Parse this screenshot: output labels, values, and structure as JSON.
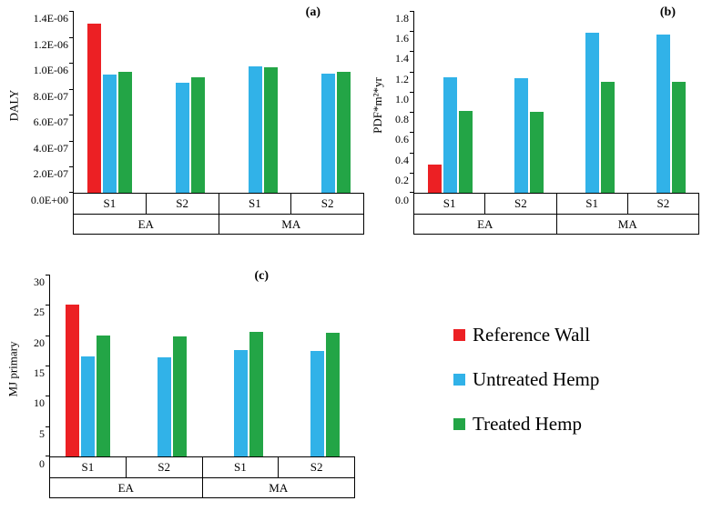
{
  "legend": {
    "items": [
      {
        "label": "Reference Wall",
        "color": "#ec2024"
      },
      {
        "label": "Untreated Hemp",
        "color": "#31b2e8"
      },
      {
        "label": "Treated Hemp",
        "color": "#23a546"
      }
    ]
  },
  "chart_data": [
    {
      "type": "bar",
      "panel": "(a)",
      "ylabel": "DALY",
      "ylim": [
        0,
        1.4e-06
      ],
      "yticks": [
        {
          "value": 0,
          "label": "0.0E+00"
        },
        {
          "value": 2e-07,
          "label": "2.0E-07"
        },
        {
          "value": 4e-07,
          "label": "4.0E-07"
        },
        {
          "value": 6e-07,
          "label": "6.0E-07"
        },
        {
          "value": 8e-07,
          "label": "8.0E-07"
        },
        {
          "value": 1e-06,
          "label": "1.0E-06"
        },
        {
          "value": 1.2e-06,
          "label": "1.2E-06"
        },
        {
          "value": 1.4e-06,
          "label": "1.4E-06"
        }
      ],
      "groups": [
        {
          "label": "EA",
          "subs": [
            "S1",
            "S2"
          ]
        },
        {
          "label": "MA",
          "subs": [
            "S1",
            "S2"
          ]
        }
      ],
      "series": [
        {
          "name": "Reference Wall",
          "color": "#ec2024",
          "values": [
            1.3e-06,
            null,
            null,
            null
          ]
        },
        {
          "name": "Untreated Hemp",
          "color": "#31b2e8",
          "values": [
            9.1e-07,
            8.5e-07,
            9.7e-07,
            9.15e-07
          ]
        },
        {
          "name": "Treated Hemp",
          "color": "#23a546",
          "values": [
            9.3e-07,
            8.9e-07,
            9.65e-07,
            9.3e-07
          ]
        }
      ]
    },
    {
      "type": "bar",
      "panel": "(b)",
      "ylabel": "PDF*m²*yr",
      "ylim": [
        0,
        1.8
      ],
      "yticks": [
        {
          "value": 0,
          "label": "0.0"
        },
        {
          "value": 0.2,
          "label": "0.2"
        },
        {
          "value": 0.4,
          "label": "0.4"
        },
        {
          "value": 0.6,
          "label": "0.6"
        },
        {
          "value": 0.8,
          "label": "0.8"
        },
        {
          "value": 1.0,
          "label": "1.0"
        },
        {
          "value": 1.2,
          "label": "1.2"
        },
        {
          "value": 1.4,
          "label": "1.4"
        },
        {
          "value": 1.6,
          "label": "1.6"
        },
        {
          "value": 1.8,
          "label": "1.8"
        }
      ],
      "groups": [
        {
          "label": "EA",
          "subs": [
            "S1",
            "S2"
          ]
        },
        {
          "label": "MA",
          "subs": [
            "S1",
            "S2"
          ]
        }
      ],
      "series": [
        {
          "name": "Reference Wall",
          "color": "#ec2024",
          "values": [
            0.28,
            null,
            null,
            null
          ]
        },
        {
          "name": "Untreated Hemp",
          "color": "#31b2e8",
          "values": [
            1.14,
            1.13,
            1.58,
            1.57
          ]
        },
        {
          "name": "Treated Hemp",
          "color": "#23a546",
          "values": [
            0.81,
            0.8,
            1.1,
            1.1
          ]
        }
      ]
    },
    {
      "type": "bar",
      "panel": "(c)",
      "ylabel": "MJ primary",
      "ylim": [
        0,
        30
      ],
      "yticks": [
        {
          "value": 0,
          "label": "0"
        },
        {
          "value": 5,
          "label": "5"
        },
        {
          "value": 10,
          "label": "10"
        },
        {
          "value": 15,
          "label": "15"
        },
        {
          "value": 20,
          "label": "20"
        },
        {
          "value": 25,
          "label": "25"
        },
        {
          "value": 30,
          "label": "30"
        }
      ],
      "groups": [
        {
          "label": "EA",
          "subs": [
            "S1",
            "S2"
          ]
        },
        {
          "label": "MA",
          "subs": [
            "S1",
            "S2"
          ]
        }
      ],
      "series": [
        {
          "name": "Reference Wall",
          "color": "#ec2024",
          "values": [
            25,
            null,
            null,
            null
          ]
        },
        {
          "name": "Untreated Hemp",
          "color": "#31b2e8",
          "values": [
            16.5,
            16.3,
            17.6,
            17.4
          ]
        },
        {
          "name": "Treated Hemp",
          "color": "#23a546",
          "values": [
            19.9,
            19.8,
            20.5,
            20.4
          ]
        }
      ]
    }
  ]
}
